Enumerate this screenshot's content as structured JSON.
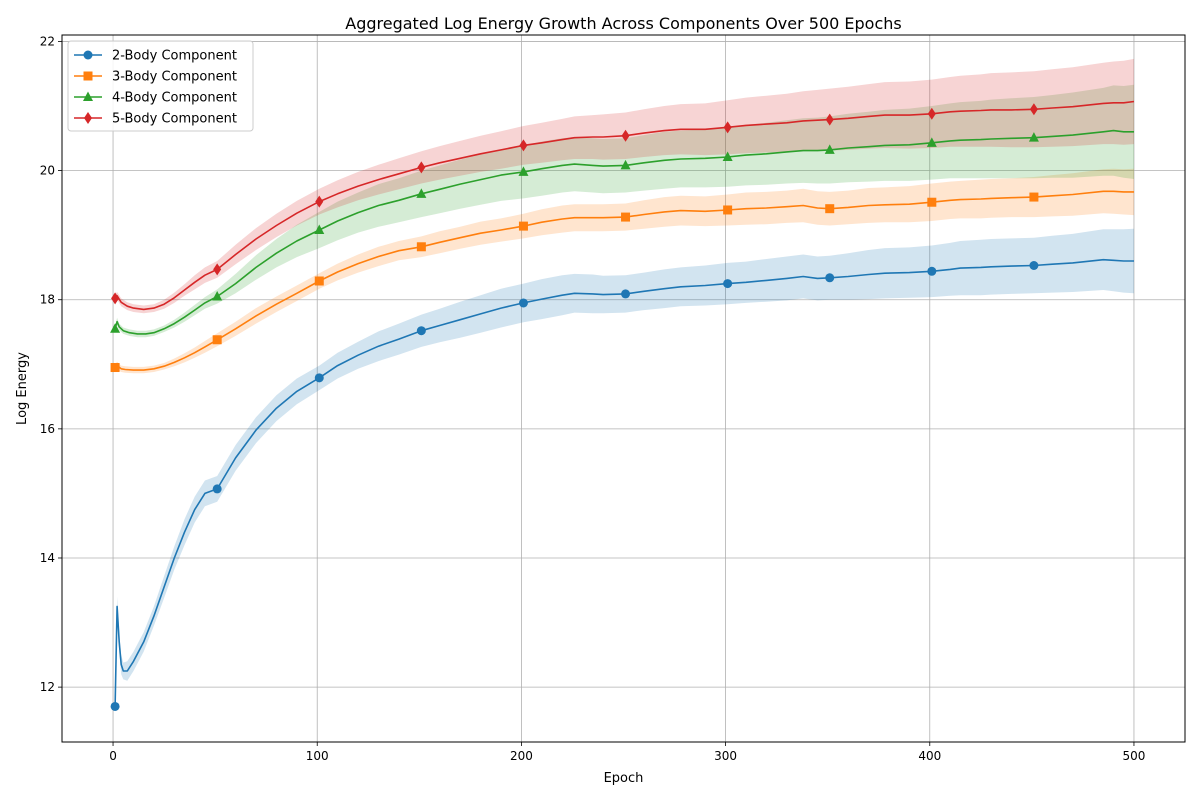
{
  "chart_data": {
    "type": "line",
    "title": "Aggregated Log Energy Growth Across Components Over 500 Epochs",
    "xlabel": "Epoch",
    "ylabel": "Log Energy",
    "xlim": [
      -25,
      525
    ],
    "ylim": [
      11.15,
      22.1
    ],
    "xticks": [
      0,
      100,
      200,
      300,
      400,
      500
    ],
    "yticks": [
      12,
      14,
      16,
      18,
      20,
      22
    ],
    "grid": true,
    "legend_position": "top-left",
    "marker_epochs": [
      1,
      51,
      101,
      151,
      201,
      251,
      301,
      351,
      401,
      451
    ],
    "series": [
      {
        "name": "2-Body Component",
        "color": "#1f77b4",
        "marker": "circle",
        "x": [
          1,
          2,
          3,
          4,
          5,
          7,
          10,
          15,
          20,
          25,
          30,
          35,
          40,
          45,
          51,
          60,
          70,
          80,
          90,
          101,
          110,
          120,
          130,
          140,
          151,
          160,
          170,
          180,
          190,
          201,
          210,
          220,
          226,
          235,
          240,
          251,
          260,
          270,
          278,
          290,
          301,
          310,
          320,
          330,
          338,
          345,
          351,
          360,
          370,
          378,
          390,
          401,
          410,
          415,
          425,
          430,
          440,
          451,
          460,
          470,
          485,
          490,
          495,
          500
        ],
        "y": [
          11.7,
          13.25,
          12.7,
          12.35,
          12.25,
          12.25,
          12.4,
          12.7,
          13.1,
          13.55,
          14.0,
          14.4,
          14.75,
          15.0,
          15.07,
          15.55,
          15.98,
          16.32,
          16.58,
          16.79,
          16.98,
          17.14,
          17.28,
          17.39,
          17.52,
          17.6,
          17.69,
          17.78,
          17.87,
          17.95,
          18.01,
          18.07,
          18.1,
          18.09,
          18.08,
          18.09,
          18.13,
          18.17,
          18.2,
          18.22,
          18.25,
          18.27,
          18.3,
          18.33,
          18.36,
          18.33,
          18.34,
          18.36,
          18.39,
          18.41,
          18.42,
          18.44,
          18.47,
          18.49,
          18.5,
          18.51,
          18.52,
          18.53,
          18.55,
          18.57,
          18.62,
          18.61,
          18.6,
          18.6
        ],
        "band_low": [
          11.6,
          13.1,
          12.55,
          12.2,
          12.12,
          12.1,
          12.25,
          12.55,
          12.95,
          13.38,
          13.82,
          14.2,
          14.55,
          14.8,
          14.87,
          15.35,
          15.78,
          16.12,
          16.38,
          16.6,
          16.78,
          16.93,
          17.05,
          17.15,
          17.27,
          17.34,
          17.41,
          17.49,
          17.57,
          17.65,
          17.7,
          17.76,
          17.8,
          17.79,
          17.79,
          17.8,
          17.84,
          17.87,
          17.9,
          17.91,
          17.93,
          17.95,
          17.97,
          17.99,
          18.02,
          17.99,
          18.0,
          18.0,
          18.01,
          18.02,
          18.03,
          18.04,
          18.06,
          18.07,
          18.07,
          18.08,
          18.09,
          18.1,
          18.11,
          18.12,
          18.15,
          18.13,
          18.11,
          18.1
        ],
        "band_high": [
          11.8,
          13.4,
          12.85,
          12.5,
          12.38,
          12.4,
          12.55,
          12.85,
          13.25,
          13.72,
          14.18,
          14.6,
          14.95,
          15.2,
          15.27,
          15.75,
          16.18,
          16.52,
          16.78,
          16.98,
          17.18,
          17.35,
          17.51,
          17.63,
          17.77,
          17.86,
          17.97,
          18.07,
          18.17,
          18.25,
          18.32,
          18.38,
          18.4,
          18.39,
          18.37,
          18.38,
          18.42,
          18.47,
          18.5,
          18.53,
          18.57,
          18.59,
          18.63,
          18.67,
          18.7,
          18.67,
          18.68,
          18.72,
          18.77,
          18.8,
          18.81,
          18.84,
          18.88,
          18.91,
          18.93,
          18.94,
          18.95,
          18.96,
          18.99,
          19.02,
          19.09,
          19.09,
          19.09,
          19.1
        ]
      },
      {
        "name": "3-Body Component",
        "color": "#ff7f0e",
        "marker": "square",
        "x": [
          1,
          2,
          4,
          6,
          10,
          15,
          20,
          25,
          30,
          35,
          40,
          45,
          51,
          60,
          70,
          80,
          90,
          101,
          110,
          120,
          130,
          140,
          151,
          160,
          170,
          180,
          190,
          201,
          210,
          220,
          226,
          235,
          240,
          251,
          260,
          270,
          278,
          290,
          301,
          310,
          320,
          330,
          338,
          345,
          351,
          360,
          370,
          378,
          390,
          401,
          410,
          415,
          425,
          430,
          440,
          451,
          460,
          470,
          485,
          490,
          495,
          500
        ],
        "y": [
          16.95,
          16.98,
          16.93,
          16.92,
          16.91,
          16.91,
          16.93,
          16.97,
          17.03,
          17.1,
          17.18,
          17.27,
          17.38,
          17.55,
          17.75,
          17.93,
          18.1,
          18.29,
          18.43,
          18.56,
          18.67,
          18.76,
          18.82,
          18.89,
          18.96,
          19.03,
          19.08,
          19.14,
          19.2,
          19.25,
          19.27,
          19.27,
          19.27,
          19.28,
          19.32,
          19.36,
          19.38,
          19.37,
          19.39,
          19.41,
          19.42,
          19.44,
          19.46,
          19.42,
          19.41,
          19.43,
          19.46,
          19.47,
          19.48,
          19.51,
          19.54,
          19.55,
          19.56,
          19.57,
          19.58,
          19.59,
          19.61,
          19.63,
          19.68,
          19.68,
          19.67,
          19.67
        ],
        "band_low": [
          16.9,
          16.92,
          16.88,
          16.87,
          16.86,
          16.86,
          16.88,
          16.92,
          16.97,
          17.03,
          17.1,
          17.18,
          17.28,
          17.44,
          17.63,
          17.81,
          17.98,
          18.17,
          18.3,
          18.42,
          18.52,
          18.61,
          18.66,
          18.72,
          18.79,
          18.85,
          18.9,
          18.95,
          19.0,
          19.04,
          19.06,
          19.06,
          19.06,
          19.07,
          19.1,
          19.13,
          19.15,
          19.14,
          19.15,
          19.16,
          19.17,
          19.19,
          19.2,
          19.16,
          19.15,
          19.17,
          19.19,
          19.2,
          19.2,
          19.22,
          19.25,
          19.26,
          19.26,
          19.27,
          19.28,
          19.28,
          19.29,
          19.3,
          19.34,
          19.33,
          19.32,
          19.31
        ],
        "band_high": [
          17.0,
          17.04,
          16.98,
          16.97,
          16.96,
          16.96,
          16.98,
          17.02,
          17.09,
          17.17,
          17.26,
          17.36,
          17.48,
          17.66,
          17.87,
          18.05,
          18.22,
          18.41,
          18.56,
          18.7,
          18.82,
          18.91,
          18.98,
          19.06,
          19.13,
          19.21,
          19.26,
          19.33,
          19.4,
          19.46,
          19.48,
          19.48,
          19.48,
          19.49,
          19.54,
          19.59,
          19.61,
          19.6,
          19.63,
          19.66,
          19.67,
          19.69,
          19.72,
          19.68,
          19.67,
          19.69,
          19.73,
          19.74,
          19.76,
          19.8,
          19.83,
          19.84,
          19.86,
          19.87,
          19.88,
          19.9,
          19.93,
          19.96,
          20.02,
          20.03,
          20.02,
          20.03
        ]
      },
      {
        "name": "4-Body Component",
        "color": "#2ca02c",
        "marker": "triangle",
        "x": [
          1,
          2,
          3,
          5,
          8,
          12,
          16,
          20,
          25,
          30,
          35,
          40,
          45,
          51,
          60,
          70,
          80,
          90,
          101,
          110,
          120,
          130,
          140,
          151,
          160,
          170,
          180,
          190,
          201,
          210,
          220,
          226,
          235,
          240,
          251,
          260,
          270,
          278,
          290,
          301,
          310,
          320,
          330,
          338,
          345,
          351,
          360,
          370,
          378,
          390,
          401,
          410,
          415,
          425,
          430,
          440,
          451,
          460,
          470,
          485,
          490,
          495,
          500
        ],
        "y": [
          17.55,
          17.66,
          17.58,
          17.52,
          17.49,
          17.47,
          17.47,
          17.49,
          17.55,
          17.63,
          17.73,
          17.84,
          17.95,
          18.05,
          18.25,
          18.5,
          18.72,
          18.91,
          19.08,
          19.22,
          19.35,
          19.46,
          19.54,
          19.64,
          19.71,
          19.79,
          19.86,
          19.93,
          19.98,
          20.03,
          20.08,
          20.1,
          20.08,
          20.07,
          20.08,
          20.12,
          20.16,
          20.18,
          20.19,
          20.21,
          20.24,
          20.26,
          20.29,
          20.31,
          20.31,
          20.32,
          20.35,
          20.37,
          20.39,
          20.4,
          20.43,
          20.46,
          20.47,
          20.48,
          20.49,
          20.5,
          20.51,
          20.53,
          20.55,
          20.6,
          20.62,
          20.6,
          20.6
        ],
        "band_low": [
          17.5,
          17.6,
          17.53,
          17.47,
          17.44,
          17.42,
          17.42,
          17.44,
          17.5,
          17.57,
          17.66,
          17.76,
          17.86,
          17.94,
          18.1,
          18.31,
          18.5,
          18.66,
          18.8,
          18.92,
          19.04,
          19.13,
          19.2,
          19.28,
          19.34,
          19.41,
          19.47,
          19.53,
          19.57,
          19.61,
          19.66,
          19.68,
          19.66,
          19.65,
          19.66,
          19.69,
          19.72,
          19.74,
          19.74,
          19.75,
          19.77,
          19.78,
          19.8,
          19.81,
          19.8,
          19.8,
          19.82,
          19.83,
          19.84,
          19.84,
          19.86,
          19.88,
          19.88,
          19.88,
          19.88,
          19.88,
          19.88,
          19.89,
          19.89,
          19.92,
          19.92,
          19.89,
          19.87
        ],
        "band_high": [
          17.6,
          17.72,
          17.63,
          17.57,
          17.54,
          17.52,
          17.52,
          17.54,
          17.6,
          17.69,
          17.8,
          17.92,
          18.04,
          18.16,
          18.4,
          18.69,
          18.94,
          19.16,
          19.36,
          19.52,
          19.66,
          19.79,
          19.88,
          20.0,
          20.08,
          20.17,
          20.25,
          20.33,
          20.39,
          20.45,
          20.5,
          20.52,
          20.5,
          20.49,
          20.5,
          20.55,
          20.6,
          20.62,
          20.64,
          20.67,
          20.71,
          20.74,
          20.78,
          20.81,
          20.82,
          20.84,
          20.88,
          20.91,
          20.94,
          20.96,
          21.0,
          21.04,
          21.06,
          21.08,
          21.1,
          21.12,
          21.14,
          21.17,
          21.21,
          21.28,
          21.32,
          21.31,
          21.33
        ]
      },
      {
        "name": "5-Body Component",
        "color": "#d62728",
        "marker": "diamond",
        "x": [
          1,
          2,
          4,
          7,
          10,
          15,
          20,
          25,
          30,
          35,
          40,
          45,
          51,
          60,
          70,
          80,
          90,
          101,
          110,
          120,
          130,
          140,
          151,
          160,
          170,
          180,
          190,
          201,
          210,
          220,
          226,
          235,
          240,
          251,
          260,
          270,
          278,
          290,
          301,
          310,
          320,
          330,
          338,
          345,
          351,
          360,
          370,
          378,
          390,
          401,
          410,
          415,
          425,
          430,
          440,
          451,
          460,
          470,
          485,
          490,
          495,
          500
        ],
        "y": [
          18.02,
          18.06,
          17.96,
          17.9,
          17.87,
          17.85,
          17.87,
          17.93,
          18.03,
          18.15,
          18.27,
          18.38,
          18.47,
          18.7,
          18.94,
          19.15,
          19.34,
          19.52,
          19.64,
          19.76,
          19.86,
          19.95,
          20.05,
          20.12,
          20.19,
          20.26,
          20.32,
          20.39,
          20.43,
          20.48,
          20.51,
          20.52,
          20.52,
          20.54,
          20.58,
          20.62,
          20.64,
          20.64,
          20.67,
          20.7,
          20.72,
          20.74,
          20.77,
          20.78,
          20.79,
          20.81,
          20.84,
          20.86,
          20.86,
          20.88,
          20.91,
          20.92,
          20.93,
          20.94,
          20.94,
          20.95,
          20.97,
          20.99,
          21.04,
          21.05,
          21.05,
          21.07
        ],
        "band_low": [
          17.96,
          18.0,
          17.9,
          17.84,
          17.81,
          17.79,
          17.81,
          17.86,
          17.95,
          18.06,
          18.16,
          18.26,
          18.34,
          18.55,
          18.77,
          18.97,
          19.15,
          19.32,
          19.43,
          19.54,
          19.63,
          19.71,
          19.8,
          19.86,
          19.92,
          19.98,
          20.03,
          20.09,
          20.12,
          20.16,
          20.18,
          20.18,
          20.17,
          20.18,
          20.21,
          20.24,
          20.25,
          20.24,
          20.25,
          20.27,
          20.28,
          20.29,
          20.31,
          20.31,
          20.31,
          20.32,
          20.34,
          20.35,
          20.34,
          20.35,
          20.37,
          20.37,
          20.37,
          20.37,
          20.36,
          20.36,
          20.37,
          20.38,
          20.41,
          20.41,
          20.4,
          20.41
        ],
        "band_high": [
          18.08,
          18.12,
          18.02,
          17.96,
          17.93,
          17.91,
          17.93,
          18.0,
          18.11,
          18.24,
          18.38,
          18.5,
          18.6,
          18.85,
          19.11,
          19.33,
          19.53,
          19.72,
          19.85,
          19.98,
          20.09,
          20.19,
          20.3,
          20.38,
          20.46,
          20.54,
          20.61,
          20.69,
          20.74,
          20.8,
          20.84,
          20.86,
          20.87,
          20.9,
          20.95,
          21.0,
          21.03,
          21.04,
          21.09,
          21.13,
          21.16,
          21.19,
          21.23,
          21.25,
          21.27,
          21.3,
          21.34,
          21.37,
          21.38,
          21.41,
          21.45,
          21.47,
          21.49,
          21.51,
          21.52,
          21.54,
          21.57,
          21.6,
          21.67,
          21.69,
          21.7,
          21.73
        ]
      }
    ]
  }
}
